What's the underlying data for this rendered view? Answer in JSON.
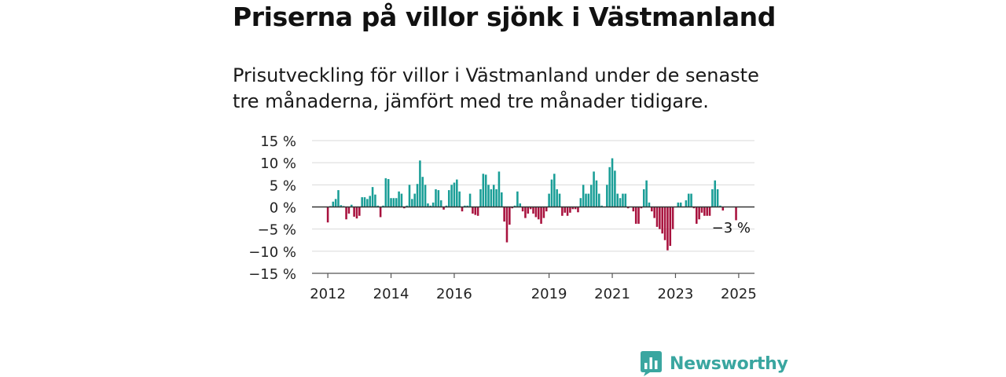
{
  "title": "Priserna på villor sjönk i Västmanland",
  "subtitle": "Prisutveckling för villor i Västmanland under de senaste tre månaderna, jämfört med tre månader tidigare.",
  "brand": {
    "name": "Newsworthy",
    "logo_icon": "newsworthy-bar-chart-icon"
  },
  "colors": {
    "positive": "#1a9e97",
    "negative": "#a8123e",
    "grid": "#d9d9d9",
    "zero_line": "#333333"
  },
  "chart_data": {
    "type": "bar",
    "ylim": [
      -15,
      15
    ],
    "yticks": [
      15,
      10,
      5,
      0,
      -5,
      -10,
      -15
    ],
    "ytick_labels": [
      "15 %",
      "10 %",
      "5 %",
      "0 %",
      "−5 %",
      "−10 %",
      "−15 %"
    ],
    "xlim": [
      2011.5,
      2025.5
    ],
    "xticks": [
      2012,
      2014,
      2016,
      2019,
      2021,
      2023,
      2025
    ],
    "xtick_labels": [
      "2012",
      "2014",
      "2016",
      "2019",
      "2021",
      "2023",
      "2025"
    ],
    "start": "2012-01",
    "frequency": "monthly",
    "grid": true,
    "values": [
      -3.5,
      0.2,
      1.2,
      1.8,
      3.8,
      0.4,
      0.2,
      -2.8,
      -1.5,
      0.5,
      -2.2,
      -2.6,
      -2,
      2.2,
      2.2,
      1.8,
      2.5,
      4.5,
      2.8,
      0.3,
      -2.3,
      0.3,
      6.5,
      6.3,
      2,
      2,
      2,
      3.5,
      3,
      -0.3,
      0.3,
      5,
      1.8,
      3,
      5.2,
      10.5,
      6.8,
      5,
      0.8,
      0.3,
      1,
      4,
      3.8,
      1.5,
      -0.6,
      0.3,
      3.8,
      5,
      5.5,
      6.2,
      3.5,
      -1,
      0.3,
      0.3,
      3,
      -1.5,
      -1.8,
      -2,
      4,
      7.5,
      7.3,
      5,
      4,
      5,
      4,
      8,
      3.3,
      -3.3,
      -8,
      -4,
      -0.3,
      0.3,
      3.5,
      0.8,
      -1,
      -2.5,
      -1.5,
      -0.5,
      -1.5,
      -2.3,
      -2.8,
      -3.8,
      -2.5,
      -1,
      3,
      6.2,
      7.5,
      4,
      3,
      -2,
      -1.3,
      -2,
      -1.3,
      -0.5,
      -0.5,
      -1.2,
      2,
      5,
      3,
      3,
      5,
      8,
      6,
      3,
      0.3,
      0,
      5,
      9,
      11,
      8.2,
      3,
      2,
      3,
      3,
      -0.3,
      0,
      -1,
      -3.8,
      -3.8,
      -0.3,
      4,
      6,
      1,
      -1,
      -2.5,
      -4.5,
      -5,
      -6,
      -7.5,
      -9.8,
      -8.8,
      -5,
      0,
      1,
      1,
      0,
      1.5,
      3,
      3,
      -0.3,
      -3.8,
      -2.8,
      -1.3,
      -2,
      -2,
      -2,
      4,
      6,
      4,
      0.3,
      -0.8,
      0,
      0,
      0,
      0,
      -3
    ],
    "annotation": {
      "text": "−3 %",
      "target": "last"
    }
  }
}
